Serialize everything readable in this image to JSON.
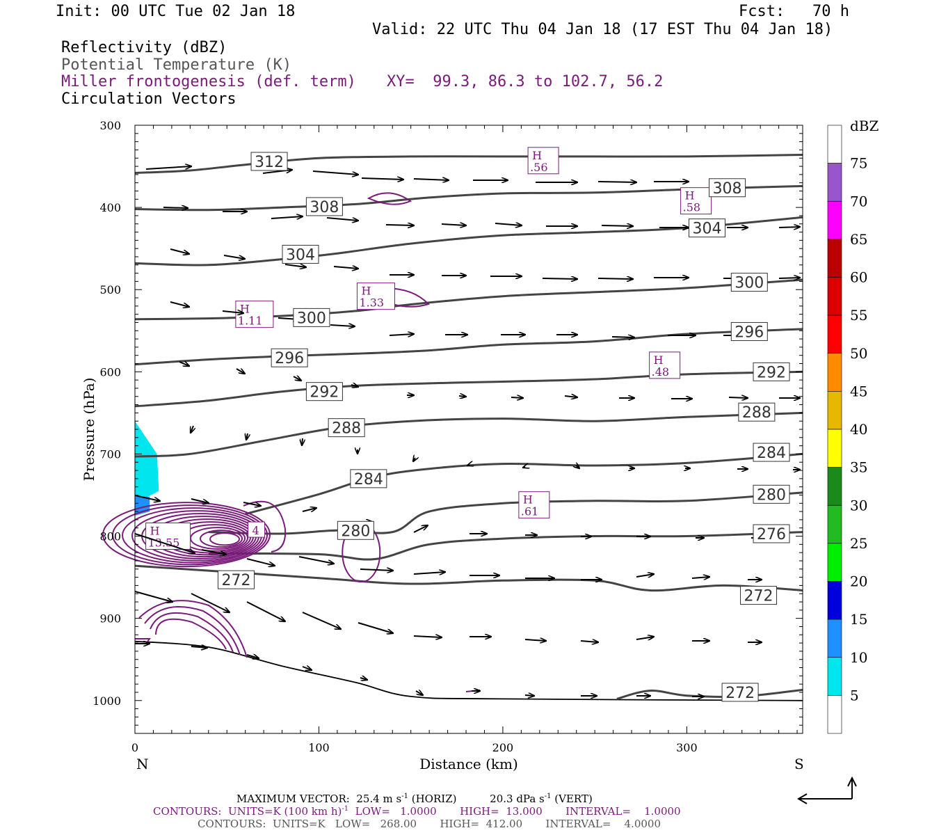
{
  "header": {
    "init": "Init: 00 UTC Tue 02 Jan 18",
    "fcst": "Fcst:   70 h",
    "valid": "Valid: 22 UTC Thu 04 Jan 18 (17 EST Thu 04 Jan 18)",
    "fields": [
      "Reflectivity (dBZ)",
      "Potential Temperature (K)",
      "Miller frontogenesis (def. term)",
      "Circulation Vectors"
    ],
    "xy": "XY=  99.3, 86.3 to 102.7, 56.2"
  },
  "colorbar": {
    "title": "dBZ",
    "labels": [
      "75",
      "70",
      "65",
      "60",
      "55",
      "50",
      "45",
      "40",
      "35",
      "30",
      "25",
      "20",
      "15",
      "10",
      "5"
    ],
    "colors": [
      "#ffffff",
      "#9955cc",
      "#ff00ff",
      "#bb0000",
      "#dd0000",
      "#ff0000",
      "#ff8c00",
      "#e6b800",
      "#ffff00",
      "#1a8a1a",
      "#22bb22",
      "#00ee00",
      "#0000dd",
      "#1e90ff",
      "#00e5ee",
      "#ffffff"
    ]
  },
  "footer": {
    "max_vector": "MAXIMUM VECTOR:  25.4 m s",
    "max_vector_sup": "-1",
    "max_vector_mid": " (HORIZ)          20.3 dPa s",
    "max_vector_sup2": "-1",
    "max_vector_end": " (VERT)",
    "contours_purple": "CONTOURS:  UNITS=K (100 km h)",
    "contours_purple_sup": "-1",
    "contours_purple_end": "  LOW=   1.0000       HIGH=  13.000       INTERVAL=    1.0000",
    "contours_black": "CONTOURS:  UNITS=K   LOW=   268.00       HIGH=  412.00       INTERVAL=    4.0000"
  },
  "chart_data": {
    "type": "cross-section",
    "xlabel": "Distance (km)",
    "ylabel": "Pressure (hPa)",
    "xlim": [
      0,
      363
    ],
    "ylim": [
      1040,
      300
    ],
    "x_ticks": [
      0,
      100,
      200,
      300
    ],
    "y_ticks": [
      300,
      400,
      500,
      600,
      700,
      800,
      900,
      1000
    ],
    "x_end_labels": {
      "left": "N",
      "right": "S"
    },
    "theta_contours": [
      {
        "label": "312",
        "label_at": [
          73,
          344
        ],
        "points": [
          [
            0,
            358
          ],
          [
            30,
            355
          ],
          [
            60,
            348
          ],
          [
            100,
            340
          ],
          [
            150,
            338
          ],
          [
            200,
            338
          ],
          [
            250,
            338
          ],
          [
            300,
            338
          ],
          [
            363,
            336
          ]
        ]
      },
      {
        "label": "308",
        "label_at": [
          103,
          399
        ],
        "label2": "308",
        "label2_at": [
          322,
          376
        ],
        "points": [
          [
            0,
            402
          ],
          [
            40,
            403
          ],
          [
            80,
            400
          ],
          [
            120,
            396
          ],
          [
            160,
            388
          ],
          [
            200,
            383
          ],
          [
            250,
            382
          ],
          [
            300,
            378
          ],
          [
            363,
            374
          ]
        ]
      },
      {
        "label": "304",
        "label_at": [
          90,
          457
        ],
        "label2": "304",
        "label2_at": [
          311,
          425
        ],
        "points": [
          [
            0,
            468
          ],
          [
            40,
            470
          ],
          [
            80,
            463
          ],
          [
            110,
            456
          ],
          [
            150,
            444
          ],
          [
            200,
            434
          ],
          [
            250,
            430
          ],
          [
            300,
            425
          ],
          [
            363,
            412
          ]
        ]
      },
      {
        "label": "300",
        "label_at": [
          96,
          534
        ],
        "label2": "300",
        "label2_at": [
          334,
          491
        ],
        "points": [
          [
            0,
            536
          ],
          [
            40,
            535
          ],
          [
            80,
            532
          ],
          [
            120,
            526
          ],
          [
            150,
            518
          ],
          [
            200,
            508
          ],
          [
            250,
            503
          ],
          [
            300,
            498
          ],
          [
            363,
            488
          ]
        ]
      },
      {
        "label": "296",
        "label_at": [
          84,
          583
        ],
        "label2": "296",
        "label2_at": [
          334,
          551
        ],
        "points": [
          [
            0,
            591
          ],
          [
            40,
            585
          ],
          [
            80,
            581
          ],
          [
            120,
            578
          ],
          [
            160,
            574
          ],
          [
            200,
            567
          ],
          [
            250,
            563
          ],
          [
            300,
            554
          ],
          [
            363,
            548
          ]
        ]
      },
      {
        "label": "292",
        "label_at": [
          103,
          624
        ],
        "label2": "292",
        "label2_at": [
          346,
          600
        ],
        "points": [
          [
            0,
            642
          ],
          [
            40,
            635
          ],
          [
            80,
            624
          ],
          [
            120,
            617
          ],
          [
            160,
            614
          ],
          [
            200,
            612
          ],
          [
            250,
            609
          ],
          [
            300,
            603
          ],
          [
            363,
            600
          ]
        ]
      },
      {
        "label": "288",
        "label_at": [
          115,
          668
        ],
        "label2": "288",
        "label2_at": [
          338,
          649
        ],
        "points": [
          [
            0,
            703
          ],
          [
            30,
            700
          ],
          [
            70,
            684
          ],
          [
            110,
            668
          ],
          [
            150,
            660
          ],
          [
            200,
            657
          ],
          [
            250,
            660
          ],
          [
            300,
            655
          ],
          [
            363,
            650
          ]
        ]
      },
      {
        "label": "284",
        "label_at": [
          127,
          730
        ],
        "label2": "284",
        "label2_at": [
          346,
          698
        ],
        "points": [
          [
            60,
            773
          ],
          [
            100,
            749
          ],
          [
            130,
            728
          ],
          [
            160,
            718
          ],
          [
            200,
            712
          ],
          [
            250,
            714
          ],
          [
            300,
            711
          ],
          [
            363,
            700
          ]
        ]
      },
      {
        "label": "280",
        "label_at": [
          120,
          793
        ],
        "label2": "280",
        "label2_at": [
          346,
          749
        ],
        "points": [
          [
            40,
            795
          ],
          [
            80,
            797
          ],
          [
            110,
            793
          ],
          [
            140,
            795
          ],
          [
            160,
            770
          ],
          [
            200,
            760
          ],
          [
            250,
            757
          ],
          [
            300,
            757
          ],
          [
            363,
            747
          ]
        ]
      },
      {
        "label": "276",
        "label_at": [
          346,
          797
        ],
        "points": [
          [
            40,
            821
          ],
          [
            100,
            822
          ],
          [
            130,
            828
          ],
          [
            160,
            810
          ],
          [
            200,
            803
          ],
          [
            250,
            800
          ],
          [
            300,
            800
          ],
          [
            363,
            795
          ]
        ]
      },
      {
        "label": "272",
        "label_at": [
          55,
          853
        ],
        "label2": "272",
        "label2_at": [
          339,
          872
        ],
        "points": [
          [
            0,
            836
          ],
          [
            40,
            842
          ],
          [
            100,
            851
          ],
          [
            150,
            858
          ],
          [
            200,
            854
          ],
          [
            250,
            854
          ],
          [
            280,
            866
          ],
          [
            320,
            860
          ],
          [
            363,
            866
          ]
        ]
      },
      {
        "label": "272",
        "label_at": [
          329,
          990
        ],
        "points": [
          [
            262,
            998
          ],
          [
            280,
            988
          ],
          [
            300,
            994
          ],
          [
            330,
            995
          ],
          [
            363,
            987
          ]
        ]
      }
    ],
    "terrain": [
      [
        0,
        928
      ],
      [
        40,
        935
      ],
      [
        80,
        958
      ],
      [
        120,
        978
      ],
      [
        150,
        995
      ],
      [
        200,
        998
      ],
      [
        363,
        1000
      ]
    ],
    "reflectivity_dbz_area": {
      "dbz": 5,
      "points": [
        [
          0,
          660
        ],
        [
          12,
          700
        ],
        [
          13,
          745
        ],
        [
          0,
          760
        ]
      ]
    },
    "frontogenesis_maxima": [
      {
        "label": "H",
        "value": "1.33",
        "at": [
          131,
          508
        ]
      },
      {
        "label": "H",
        "value": "1.11",
        "at": [
          65,
          530
        ]
      },
      {
        "label": "H",
        "value": ".56",
        "at": [
          222,
          343
        ]
      },
      {
        "label": "H",
        "value": ".58",
        "at": [
          305,
          392
        ]
      },
      {
        "label": "H",
        "value": ".48",
        "at": [
          288,
          592
        ]
      },
      {
        "label": "H",
        "value": ".61",
        "at": [
          217,
          762
        ]
      },
      {
        "label": "H",
        "value": "13.55",
        "at": [
          18,
          800
        ]
      },
      {
        "label": "4",
        "value": "",
        "at": [
          66,
          792
        ]
      }
    ]
  }
}
